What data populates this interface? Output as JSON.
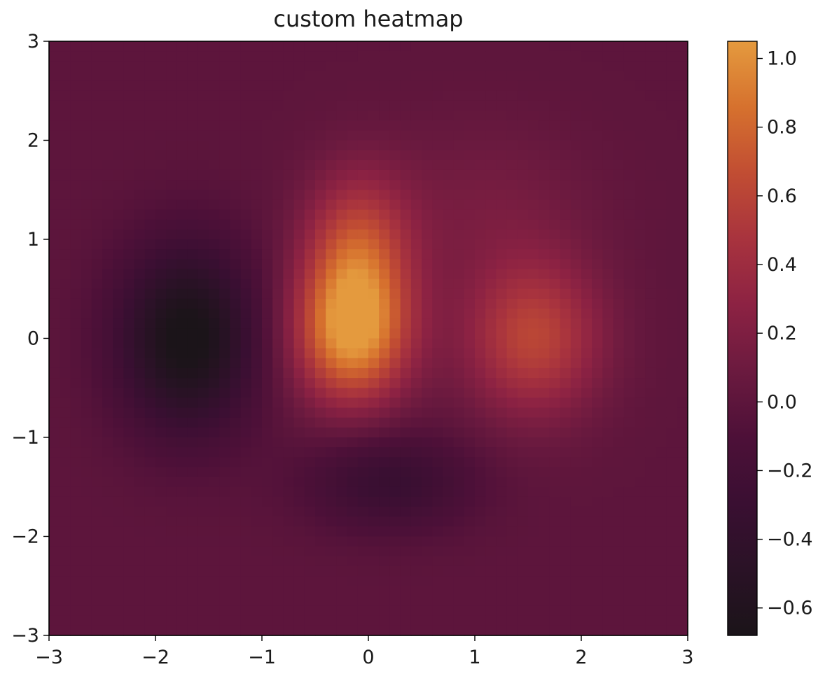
{
  "chart_data": {
    "type": "heatmap",
    "title": "custom heatmap",
    "xlabel": "",
    "ylabel": "",
    "xlim": [
      -3,
      3
    ],
    "ylim": [
      -3,
      3
    ],
    "x_ticks": [
      "−3",
      "−2",
      "−1",
      "0",
      "1",
      "2",
      "3"
    ],
    "y_ticks": [
      "3",
      "2",
      "1",
      "0",
      "−1",
      "−2",
      "−3"
    ],
    "x_tick_values": [
      -3,
      -2,
      -1,
      0,
      1,
      2,
      3
    ],
    "y_tick_values": [
      3,
      2,
      1,
      0,
      -1,
      -2,
      -3
    ],
    "grid": false,
    "colorbar": {
      "range": [
        -0.68,
        1.05
      ],
      "ticks": [
        "1.0",
        "0.8",
        "0.6",
        "0.4",
        "0.2",
        "0.0",
        "−0.2",
        "−0.4",
        "−0.6"
      ],
      "tick_values": [
        1.0,
        0.8,
        0.6,
        0.4,
        0.2,
        0.0,
        -0.2,
        -0.4,
        -0.6
      ],
      "colors": [
        "#1b1419",
        "#2a1226",
        "#3a0f32",
        "#4d1038",
        "#6b1a3f",
        "#8c2243",
        "#a8333e",
        "#c14d33",
        "#d6712e",
        "#e49a3e"
      ]
    },
    "grid_resolution": 60,
    "components": [
      {
        "x": -0.15,
        "y": 0.05,
        "amp": 1.0,
        "sx": 0.38,
        "sy": 0.5
      },
      {
        "x": -0.1,
        "y": 0.9,
        "amp": 0.6,
        "sx": 0.35,
        "sy": 0.55
      },
      {
        "x": 1.55,
        "y": 0.0,
        "amp": 0.6,
        "sx": 0.45,
        "sy": 0.55
      },
      {
        "x": 1.1,
        "y": 1.3,
        "amp": 0.15,
        "sx": 0.7,
        "sy": 0.6
      },
      {
        "x": -1.7,
        "y": 0.0,
        "amp": -0.72,
        "sx": 0.45,
        "sy": 0.65
      },
      {
        "x": 0.2,
        "y": -1.45,
        "amp": -0.32,
        "sx": 0.55,
        "sy": 0.35
      }
    ],
    "baseline": 0.0
  }
}
